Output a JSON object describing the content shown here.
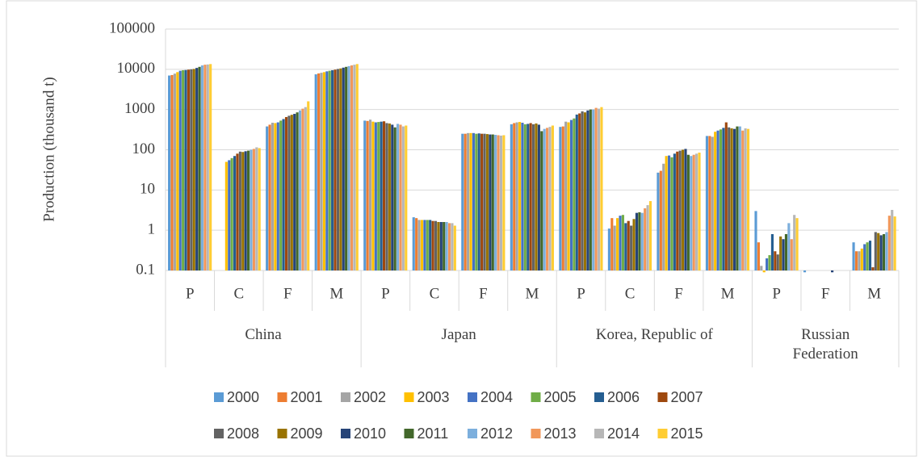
{
  "chart_data": {
    "type": "bar",
    "y_label": "Production (thousand t)",
    "log_scale": true,
    "ylim": [
      0.1,
      100000
    ],
    "yticks": [
      0.1,
      1,
      10,
      100,
      1000,
      10000,
      100000
    ],
    "groups": [
      {
        "name": "China",
        "categories": [
          "P",
          "C",
          "F",
          "M"
        ]
      },
      {
        "name": "Japan",
        "categories": [
          "P",
          "C",
          "F",
          "M"
        ]
      },
      {
        "name": "Korea, Republic of",
        "categories": [
          "P",
          "C",
          "F",
          "M"
        ]
      },
      {
        "name": "Russian Federation",
        "categories": [
          "P",
          "F",
          "M"
        ]
      }
    ],
    "series": [
      {
        "name": "2000",
        "color": "#5B9BD5",
        "values": [
          7000,
          null,
          380,
          7500,
          530,
          2.1,
          250,
          430,
          370,
          1.1,
          27,
          220,
          3.0,
          0.09,
          0.5
        ]
      },
      {
        "name": "2001",
        "color": "#ED7D31",
        "values": [
          7200,
          null,
          420,
          7900,
          520,
          2.0,
          250,
          460,
          380,
          2.0,
          30,
          220,
          0.5,
          null,
          0.3
        ]
      },
      {
        "name": "2002",
        "color": "#A5A5A5",
        "values": [
          7800,
          null,
          470,
          8200,
          560,
          1.8,
          260,
          480,
          500,
          1.3,
          45,
          210,
          0.13,
          null,
          0.3
        ]
      },
      {
        "name": "2003",
        "color": "#FFC000",
        "values": [
          8500,
          50,
          460,
          8500,
          500,
          1.8,
          260,
          490,
          480,
          2.0,
          70,
          280,
          0.09,
          null,
          0.35
        ]
      },
      {
        "name": "2004",
        "color": "#4472C4",
        "values": [
          9200,
          55,
          480,
          8900,
          480,
          1.8,
          260,
          470,
          550,
          2.3,
          72,
          300,
          0.2,
          null,
          0.45
        ]
      },
      {
        "name": "2005",
        "color": "#70AD47",
        "values": [
          9500,
          62,
          530,
          9200,
          490,
          1.8,
          250,
          430,
          600,
          2.4,
          65,
          320,
          0.24,
          null,
          0.5
        ]
      },
      {
        "name": "2006",
        "color": "#255E91",
        "values": [
          9600,
          70,
          580,
          9500,
          500,
          1.8,
          255,
          440,
          750,
          1.5,
          80,
          350,
          0.8,
          null,
          0.55
        ]
      },
      {
        "name": "2007",
        "color": "#9E480E",
        "values": [
          9800,
          80,
          650,
          9800,
          510,
          1.7,
          250,
          460,
          800,
          1.7,
          90,
          480,
          0.3,
          null,
          0.12
        ]
      },
      {
        "name": "2008",
        "color": "#636363",
        "values": [
          10000,
          90,
          700,
          10200,
          460,
          1.7,
          250,
          430,
          900,
          1.3,
          95,
          360,
          0.25,
          null,
          0.9
        ]
      },
      {
        "name": "2009",
        "color": "#997300",
        "values": [
          10200,
          88,
          740,
          10500,
          450,
          1.6,
          245,
          450,
          850,
          1.9,
          100,
          340,
          0.7,
          null,
          0.85
        ]
      },
      {
        "name": "2010",
        "color": "#264478",
        "values": [
          10800,
          92,
          780,
          11000,
          420,
          1.6,
          240,
          420,
          950,
          2.7,
          105,
          330,
          0.6,
          0.09,
          0.75
        ]
      },
      {
        "name": "2011",
        "color": "#43682B",
        "values": [
          11500,
          95,
          850,
          11500,
          360,
          1.6,
          240,
          290,
          1000,
          2.8,
          75,
          380,
          0.8,
          null,
          0.8
        ]
      },
      {
        "name": "2012",
        "color": "#7CAFDD",
        "values": [
          12500,
          100,
          950,
          12000,
          440,
          1.6,
          235,
          330,
          1000,
          2.7,
          70,
          380,
          1.5,
          null,
          0.9
        ]
      },
      {
        "name": "2013",
        "color": "#F1975A",
        "values": [
          13000,
          105,
          1050,
          12500,
          420,
          1.5,
          230,
          350,
          1100,
          3.5,
          75,
          300,
          0.6,
          null,
          2.3
        ]
      },
      {
        "name": "2014",
        "color": "#B7B7B7",
        "values": [
          13200,
          115,
          1150,
          13000,
          380,
          1.5,
          225,
          370,
          1050,
          4.2,
          80,
          340,
          2.4,
          null,
          3.2
        ]
      },
      {
        "name": "2015",
        "color": "#FFCD33",
        "values": [
          13500,
          110,
          1600,
          13500,
          400,
          1.3,
          230,
          400,
          1150,
          5.3,
          85,
          330,
          2.0,
          null,
          2.2
        ]
      }
    ]
  }
}
